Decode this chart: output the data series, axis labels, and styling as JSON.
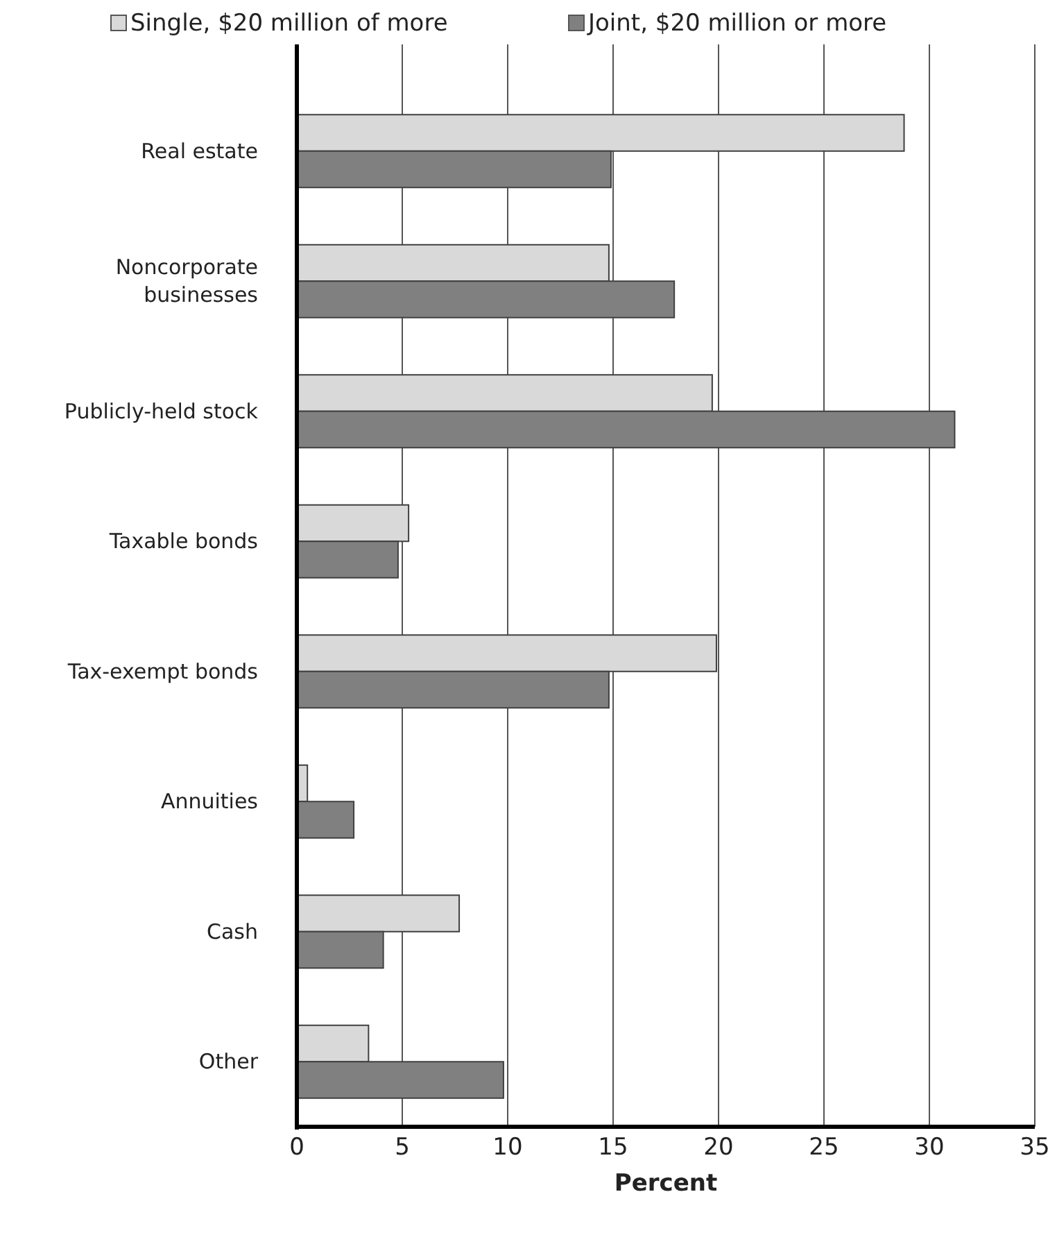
{
  "chart_data": {
    "type": "bar",
    "orientation": "horizontal",
    "xlabel": "Percent",
    "categories": [
      "Real estate",
      "Noncorporate\nbusinesses",
      "Publicly-held stock",
      "Taxable bonds",
      "Tax-exempt bonds",
      "Annuities",
      "Cash",
      "Other"
    ],
    "series": [
      {
        "name": "Single, $20 million of more",
        "color": "#d9d9d9",
        "values": [
          28.8,
          14.8,
          19.7,
          5.3,
          19.9,
          0.5,
          7.7,
          3.4
        ]
      },
      {
        "name": "Joint, $20 million or more",
        "color": "#808080",
        "values": [
          14.9,
          17.9,
          31.2,
          4.8,
          14.8,
          2.7,
          4.1,
          9.8
        ]
      }
    ],
    "xlim": [
      0,
      35
    ],
    "xticks": [
      0,
      5,
      10,
      15,
      20,
      25,
      30,
      35
    ],
    "grid": "x",
    "legend": "top"
  }
}
